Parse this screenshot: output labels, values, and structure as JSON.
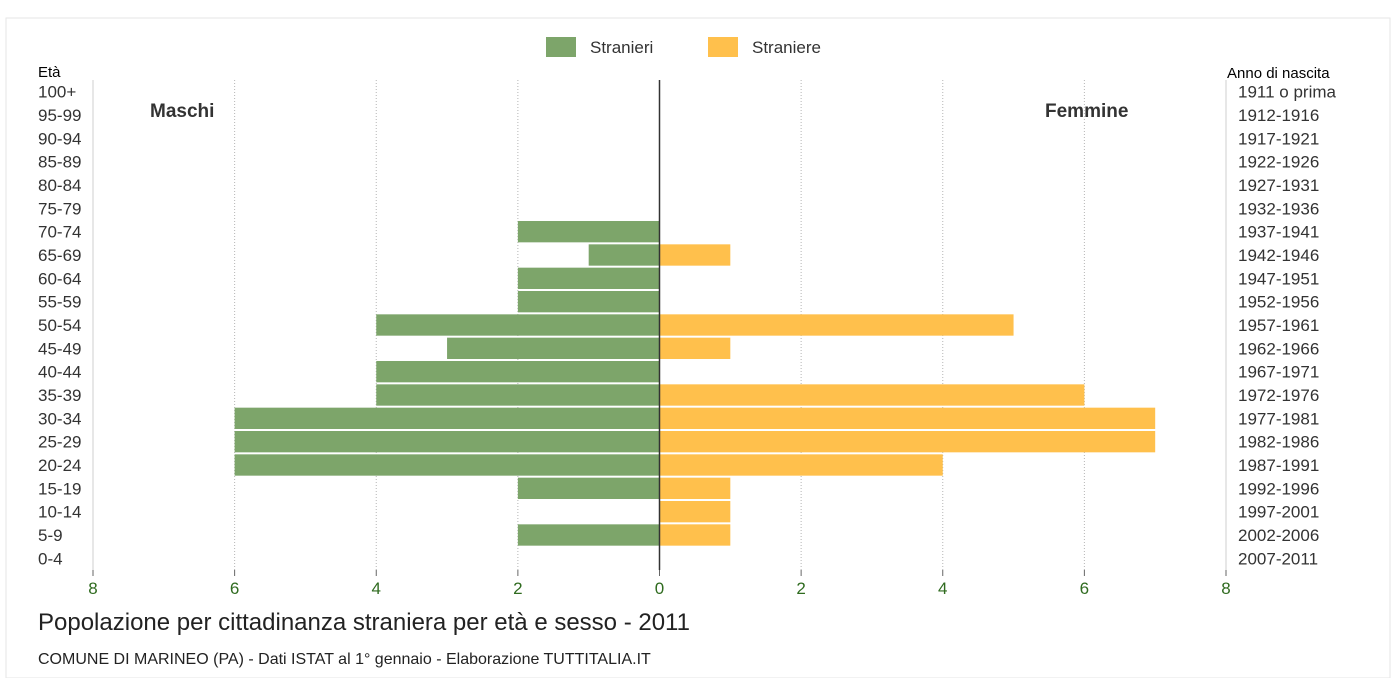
{
  "chart_data": {
    "type": "bar",
    "orientation": "horizontal-pyramid",
    "title": "Popolazione per cittadinanza straniera per età e sesso - 2011",
    "subtitle": "COMUNE DI MARINEO (PA) - Dati ISTAT al 1° gennaio - Elaborazione TUTTITALIA.IT",
    "left_axis_title": "Età",
    "right_axis_title": "Anno di nascita",
    "left_side_label": "Maschi",
    "right_side_label": "Femmine",
    "legend_position": "top-center",
    "categories": [
      "100+",
      "95-99",
      "90-94",
      "85-89",
      "80-84",
      "75-79",
      "70-74",
      "65-69",
      "60-64",
      "55-59",
      "50-54",
      "45-49",
      "40-44",
      "35-39",
      "30-34",
      "25-29",
      "20-24",
      "15-19",
      "10-14",
      "5-9",
      "0-4"
    ],
    "birth_years": [
      "1911 o prima",
      "1912-1916",
      "1917-1921",
      "1922-1926",
      "1927-1931",
      "1932-1936",
      "1937-1941",
      "1942-1946",
      "1947-1951",
      "1952-1956",
      "1957-1961",
      "1962-1966",
      "1967-1971",
      "1972-1976",
      "1977-1981",
      "1982-1986",
      "1987-1991",
      "1992-1996",
      "1997-2001",
      "2002-2006",
      "2007-2011"
    ],
    "series": [
      {
        "name": "Stranieri",
        "color": "#7da56a",
        "side": "left",
        "values": [
          0,
          0,
          0,
          0,
          0,
          0,
          2,
          1,
          2,
          2,
          4,
          3,
          4,
          4,
          6,
          6,
          6,
          2,
          0,
          2,
          0
        ]
      },
      {
        "name": "Straniere",
        "color": "#ffc04c",
        "side": "right",
        "values": [
          0,
          0,
          0,
          0,
          0,
          0,
          0,
          1,
          0,
          0,
          5,
          1,
          0,
          6,
          7,
          7,
          4,
          1,
          1,
          1,
          0
        ]
      }
    ],
    "x_ticks": [
      "8",
      "6",
      "4",
      "2",
      "0",
      "2",
      "4",
      "6",
      "8"
    ],
    "xlim": [
      -8,
      8
    ],
    "grid": true
  }
}
